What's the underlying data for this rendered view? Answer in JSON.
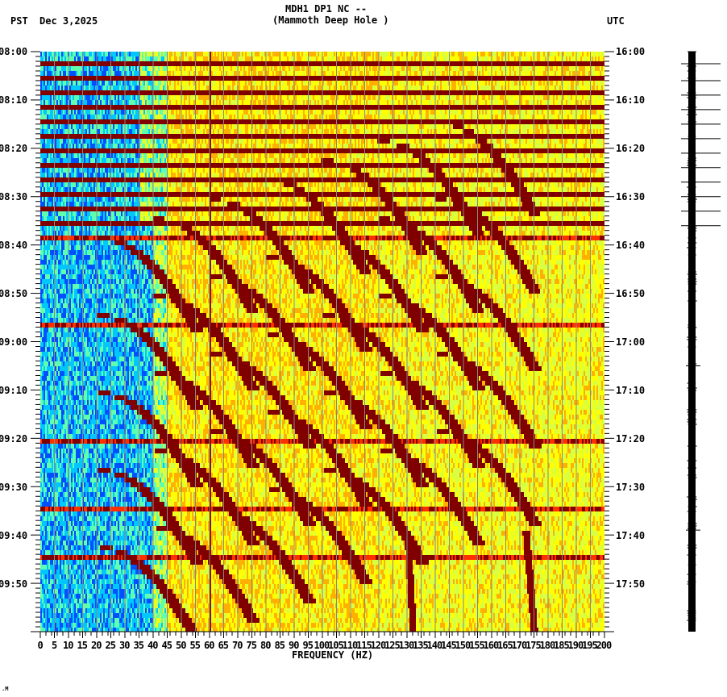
{
  "header": {
    "station_line": "MDH1 DP1 NC --",
    "location_line": "(Mammoth Deep Hole )",
    "left_tz": "PST",
    "date": "Dec 3,2025",
    "right_tz": "UTC"
  },
  "footer": {
    "corner_mark": ".M"
  },
  "chart_data": {
    "type": "heatmap",
    "title": "MDH1 DP1 NC -- (Mammoth Deep Hole )",
    "subtitle": "Dec 3,2025",
    "xlabel": "FREQUENCY (HZ)",
    "ylabel_left": "PST",
    "ylabel_right": "UTC",
    "xlim": [
      0,
      200
    ],
    "x_ticks": [
      0,
      5,
      10,
      15,
      20,
      25,
      30,
      35,
      40,
      45,
      50,
      55,
      60,
      65,
      70,
      75,
      80,
      85,
      90,
      95,
      100,
      105,
      110,
      115,
      120,
      125,
      130,
      135,
      140,
      145,
      150,
      155,
      160,
      165,
      170,
      175,
      180,
      185,
      190,
      195,
      200
    ],
    "y_ticks_left": [
      "08:00",
      "08:10",
      "08:20",
      "08:30",
      "08:40",
      "08:50",
      "09:00",
      "09:10",
      "09:20",
      "09:30",
      "09:40",
      "09:50"
    ],
    "y_ticks_right": [
      "16:00",
      "16:10",
      "16:20",
      "16:30",
      "16:40",
      "16:50",
      "17:00",
      "17:10",
      "17:20",
      "17:30",
      "17:40",
      "17:50"
    ],
    "time_range_minutes": 120,
    "grid": "vertical lines every 5 Hz (gray)",
    "colormap": [
      "#0050ff",
      "#00c8ff",
      "#60ffb0",
      "#d8ff40",
      "#ffff00",
      "#ffb000",
      "#ff3000",
      "#800000"
    ],
    "features": {
      "low_freq_quiet_band_hz": [
        0,
        40
      ],
      "persistent_line_hz": 60,
      "horizontal_broadband_bursts_minutes": [
        2,
        5,
        8,
        11,
        14,
        17,
        20,
        23,
        26,
        29,
        32,
        35,
        38,
        56,
        80,
        94,
        104
      ],
      "chirp_start_minutes": [
        38,
        54,
        70,
        86,
        102
      ],
      "tremor_like_lines": [
        {
          "hz_start": 130,
          "hz_end": 132,
          "min_start": 99,
          "min_end": 120
        },
        {
          "hz_start": 172,
          "hz_end": 175,
          "min_start": 99,
          "min_end": 120
        }
      ]
    }
  },
  "trace": {
    "description": "seismogram trace column",
    "marker_rows_minutes": [
      2.5,
      6,
      9,
      12,
      15,
      18,
      21,
      24,
      27,
      30,
      33,
      36,
      65,
      99
    ]
  }
}
